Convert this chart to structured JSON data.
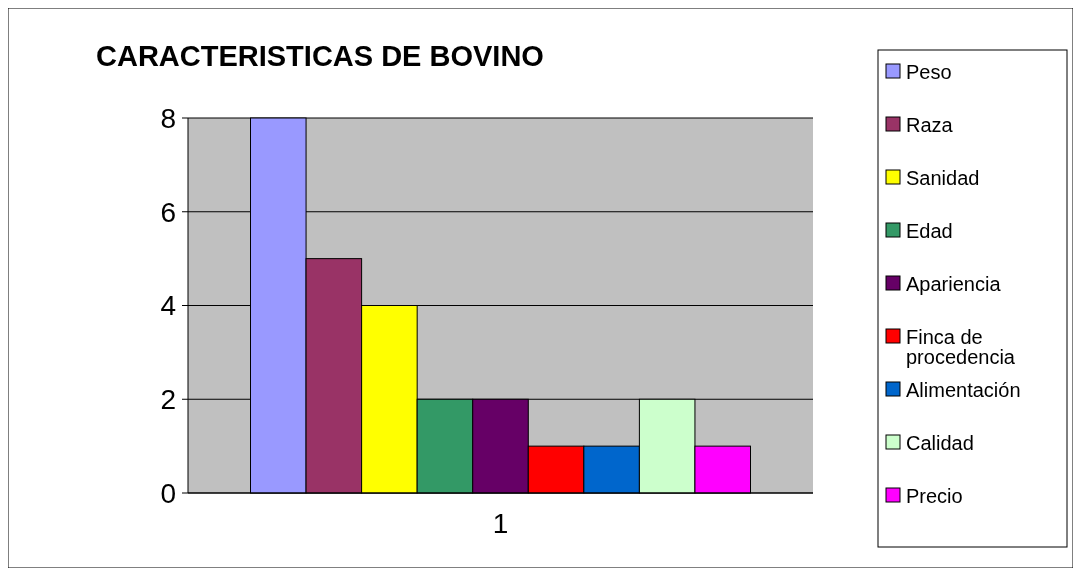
{
  "chart_data": {
    "type": "bar",
    "title": "CARACTERISTICAS DE BOVINO",
    "categories": [
      "1"
    ],
    "series": [
      {
        "name": "Peso",
        "color": "#9999ff",
        "values": [
          8
        ]
      },
      {
        "name": "Raza",
        "color": "#993366",
        "values": [
          5
        ]
      },
      {
        "name": "Sanidad",
        "color": "#ffff00",
        "values": [
          4
        ]
      },
      {
        "name": "Edad",
        "color": "#339966",
        "values": [
          2
        ]
      },
      {
        "name": "Apariencia",
        "color": "#660066",
        "values": [
          2
        ]
      },
      {
        "name": "Finca de procedencia",
        "color": "#ff0000",
        "values": [
          1
        ]
      },
      {
        "name": "Alimentación",
        "color": "#0066cc",
        "values": [
          1
        ]
      },
      {
        "name": "Calidad",
        "color": "#ccffcc",
        "values": [
          2
        ]
      },
      {
        "name": "Precio",
        "color": "#ff00ff",
        "values": [
          1
        ]
      }
    ],
    "ylim": [
      0,
      8
    ],
    "yticks": [
      0,
      2,
      4,
      6,
      8
    ],
    "grid": "y",
    "legend": "right"
  }
}
